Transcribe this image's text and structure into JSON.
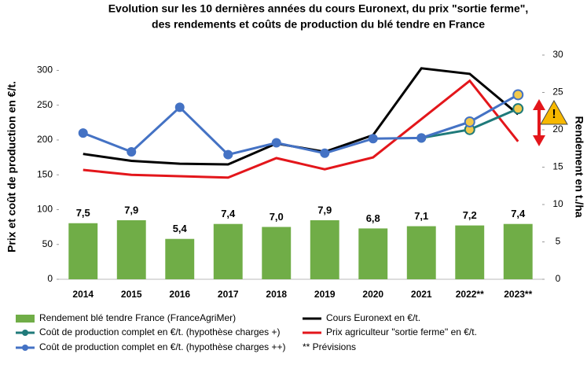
{
  "chart_data": {
    "type": "combo",
    "title": [
      "Evolution sur les 10 dernières années du cours Euronext, du prix \"sortie ferme\",",
      "des rendements et coûts de production du blé tendre en France"
    ],
    "ylabel": "Prix et coût de production en €/t.",
    "y2label": "Rendement en t./ha",
    "categories": [
      "2014",
      "2015",
      "2016",
      "2017",
      "2018",
      "2019",
      "2020",
      "2021",
      "2022**",
      "2023**"
    ],
    "ylim": [
      0,
      322
    ],
    "yticks": [
      0,
      50,
      100,
      150,
      200,
      250,
      300
    ],
    "y2lim": [
      0,
      30
    ],
    "y2ticks": [
      0,
      5,
      10,
      15,
      20,
      25,
      30
    ],
    "series": [
      {
        "name": "Rendement blé tendre France (FranceAgriMer)",
        "type": "bar",
        "axis": "y2",
        "color": "#70ad47",
        "values": [
          7.5,
          7.9,
          5.4,
          7.4,
          7.0,
          7.9,
          6.8,
          7.1,
          7.2,
          7.4
        ],
        "value_labels": [
          "7,5",
          "7,9",
          "5,4",
          "7,4",
          "7,0",
          "7,9",
          "6,8",
          "7,1",
          "7,2",
          "7,4"
        ]
      },
      {
        "name": "Cours Euronext  en €/t.",
        "type": "line",
        "color": "#000000",
        "values": [
          180,
          170,
          166,
          165,
          195,
          183,
          207,
          303,
          295,
          237
        ]
      },
      {
        "name": "Prix agriculteur \"sortie ferme\" en €/t.",
        "type": "line",
        "color": "#e3161b",
        "values": [
          157,
          150,
          148,
          146,
          174,
          158,
          175,
          230,
          285,
          198
        ]
      },
      {
        "name": "Coût de production complet en €/t. (hypothèse charges +)",
        "type": "line",
        "marker": true,
        "color": "#1f7a7a",
        "values": [
          null,
          null,
          null,
          null,
          null,
          null,
          null,
          203,
          215,
          245
        ]
      },
      {
        "name": "Coût de production complet en €/t. (hypothèse charges ++)",
        "type": "line",
        "marker": true,
        "color": "#4472c4",
        "values": [
          210,
          183,
          247,
          179,
          196,
          181,
          202,
          203,
          226,
          265
        ]
      }
    ],
    "note": "** Prévisions"
  }
}
